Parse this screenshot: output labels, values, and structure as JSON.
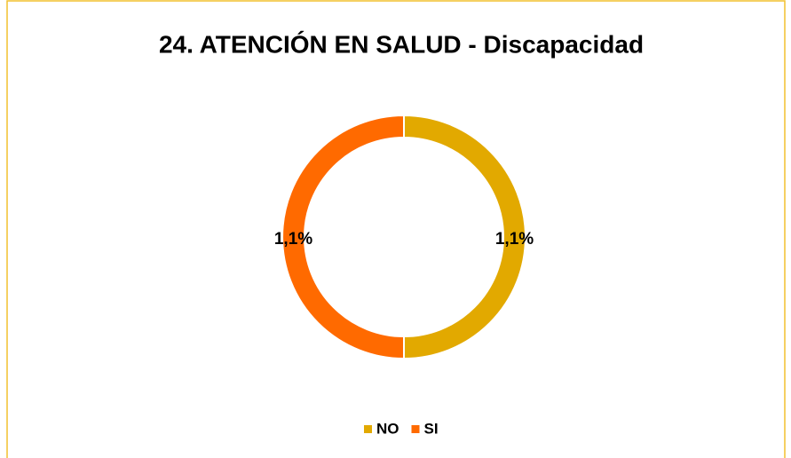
{
  "chart_data": {
    "type": "donut",
    "title": "24. ATENCIÓN EN SALUD - Discapacidad",
    "categories": [
      "NO",
      "SI"
    ],
    "values": [
      1.1,
      1.1
    ],
    "value_labels": [
      "1,1%",
      "1,1%"
    ],
    "colors": [
      "#e2a900",
      "#ff6a00"
    ],
    "legend": "bottom"
  }
}
